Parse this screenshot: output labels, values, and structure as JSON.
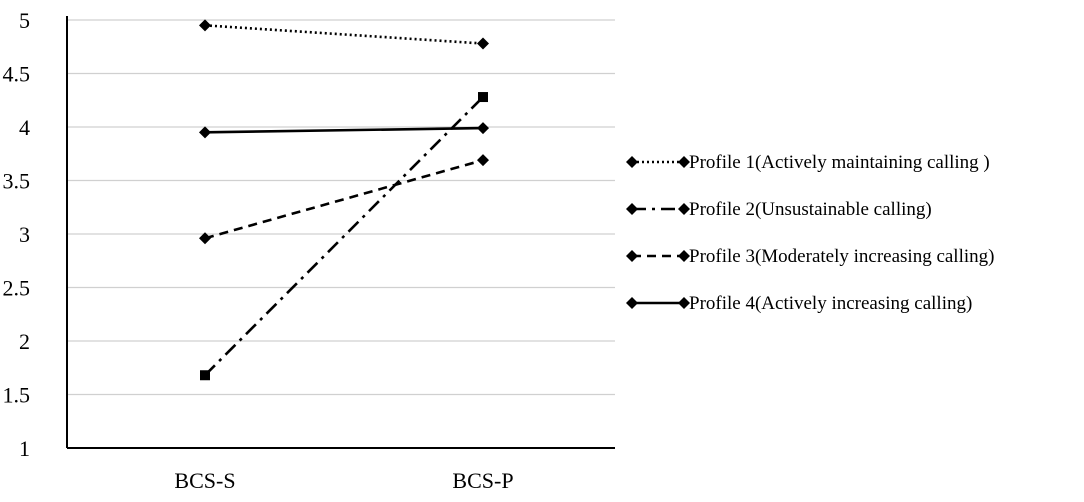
{
  "chart_data": {
    "type": "line",
    "categories": [
      "BCS-S",
      "BCS-P"
    ],
    "ylim": [
      1,
      5
    ],
    "yticks": [
      1,
      1.5,
      2,
      2.5,
      3,
      3.5,
      4,
      4.5,
      5
    ],
    "ytick_labels": [
      "1",
      "1.5",
      "2",
      "2.5",
      "3",
      "3.5",
      "4",
      "4.5",
      "5"
    ],
    "grid": true,
    "legend_position": "right",
    "series": [
      {
        "name": "Profile 1(Actively maintaining calling )",
        "values": [
          4.95,
          4.78
        ],
        "line_style": "dotted",
        "marker": "diamond",
        "color": "#000000"
      },
      {
        "name": "Profile 2(Unsustainable calling)",
        "values": [
          1.68,
          4.28
        ],
        "line_style": "dash-dot",
        "marker": "square",
        "color": "#000000"
      },
      {
        "name": "Profile 3(Moderately increasing calling)",
        "values": [
          2.96,
          3.69
        ],
        "line_style": "dashed",
        "marker": "diamond",
        "color": "#000000"
      },
      {
        "name": "Profile 4(Actively increasing calling)",
        "values": [
          3.95,
          3.99
        ],
        "line_style": "solid",
        "marker": "diamond",
        "color": "#000000"
      }
    ],
    "gridline_color": "#d0d0d0",
    "axis_color": "#000000"
  }
}
